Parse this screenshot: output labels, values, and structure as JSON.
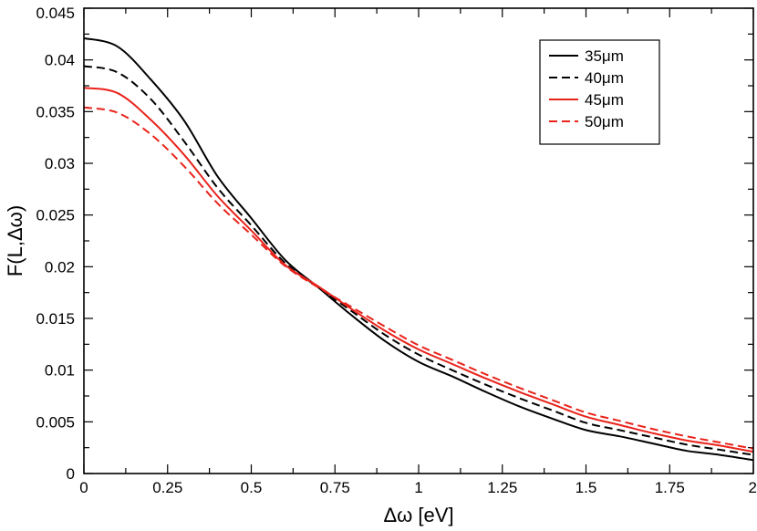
{
  "chart_data": {
    "type": "line",
    "title": "",
    "xlabel": "Δω [eV]",
    "ylabel": "F(L,Δω)",
    "xlim": [
      0,
      2
    ],
    "ylim": [
      0,
      0.045
    ],
    "x_ticks": [
      0,
      0.25,
      0.5,
      0.75,
      1,
      1.25,
      1.5,
      1.75,
      2
    ],
    "x_tick_labels": [
      "0",
      "0.25",
      "0.5",
      "0.75",
      "1",
      "1.25",
      "1.5",
      "1.75",
      "2"
    ],
    "y_ticks": [
      0,
      0.005,
      0.01,
      0.015,
      0.02,
      0.025,
      0.03,
      0.035,
      0.04,
      0.045
    ],
    "y_tick_labels": [
      "0",
      "0.005",
      "0.01",
      "0.015",
      "0.02",
      "0.025",
      "0.03",
      "0.035",
      "0.04",
      "0.045"
    ],
    "grid": false,
    "legend_position": "top-right",
    "x": [
      0,
      0.1,
      0.2,
      0.3,
      0.4,
      0.5,
      0.6,
      0.7,
      0.8,
      0.9,
      1.0,
      1.1,
      1.2,
      1.3,
      1.4,
      1.5,
      1.6,
      1.7,
      1.8,
      1.9,
      2.0
    ],
    "series": [
      {
        "name": "35μm",
        "color": "#000000",
        "dash": "solid",
        "values": [
          0.0421,
          0.0413,
          0.0381,
          0.0341,
          0.0287,
          0.0247,
          0.0207,
          0.018,
          0.0153,
          0.0128,
          0.0108,
          0.0094,
          0.0079,
          0.0065,
          0.0053,
          0.0042,
          0.0036,
          0.0029,
          0.0022,
          0.0018,
          0.0013
        ]
      },
      {
        "name": "40μm",
        "color": "#000000",
        "dash": "dashed",
        "values": [
          0.0394,
          0.0388,
          0.0362,
          0.0321,
          0.0276,
          0.024,
          0.0204,
          0.018,
          0.0157,
          0.0134,
          0.0115,
          0.01,
          0.0086,
          0.0073,
          0.0061,
          0.0049,
          0.0042,
          0.0035,
          0.0028,
          0.0023,
          0.0018
        ]
      },
      {
        "name": "45μm",
        "color": "#e8231b",
        "dash": "solid",
        "values": [
          0.0373,
          0.0368,
          0.0342,
          0.0308,
          0.0268,
          0.0235,
          0.0202,
          0.0181,
          0.0159,
          0.0138,
          0.012,
          0.0106,
          0.0092,
          0.0079,
          0.0067,
          0.0055,
          0.0047,
          0.0039,
          0.0032,
          0.0027,
          0.0021
        ]
      },
      {
        "name": "50μm",
        "color": "#e8231b",
        "dash": "dashed",
        "values": [
          0.0354,
          0.0349,
          0.0328,
          0.0297,
          0.0261,
          0.0231,
          0.0201,
          0.018,
          0.0161,
          0.0142,
          0.0124,
          0.011,
          0.0096,
          0.0083,
          0.0071,
          0.0059,
          0.0051,
          0.0043,
          0.0036,
          0.003,
          0.0024
        ]
      }
    ]
  }
}
